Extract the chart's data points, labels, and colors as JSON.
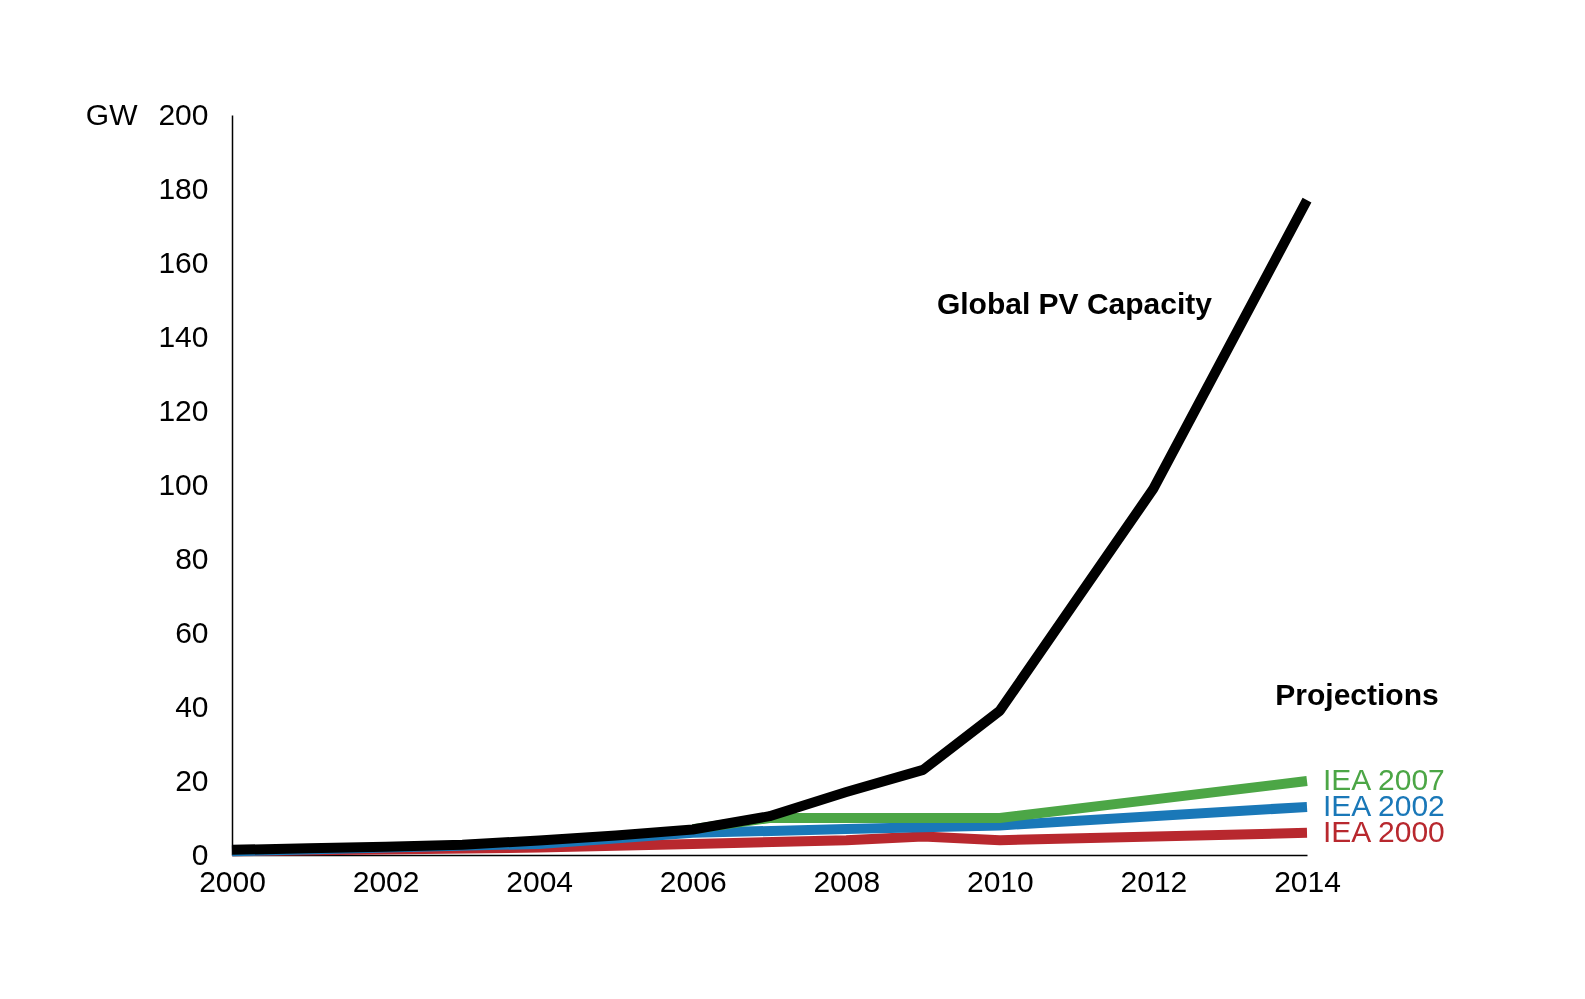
{
  "chart_data": {
    "type": "line",
    "ylabel": "GW",
    "annotations": [
      "Projections"
    ],
    "xlim": [
      2000,
      2014
    ],
    "xticks": [
      2000,
      2002,
      2004,
      2006,
      2008,
      2010,
      2012,
      2014
    ],
    "ylim": [
      0,
      200
    ],
    "yticks": [
      0,
      20,
      40,
      60,
      80,
      100,
      120,
      140,
      160,
      180,
      200
    ],
    "grid": false,
    "line_style": "solid",
    "series": [
      {
        "name": "IEA 2000",
        "color": "#b8282e",
        "x": [
          2000,
          2004,
          2006,
          2008,
          2009,
          2010,
          2014
        ],
        "values": [
          1,
          2,
          3,
          4,
          5,
          4,
          6
        ]
      },
      {
        "name": "IEA 2002",
        "color": "#1a78b8",
        "x": [
          2000,
          2004,
          2006,
          2008,
          2010,
          2014
        ],
        "values": [
          1,
          3,
          6,
          7,
          8,
          13
        ]
      },
      {
        "name": "IEA 2007",
        "color": "#4ca646",
        "x": [
          2006,
          2007,
          2010,
          2014
        ],
        "values": [
          7,
          10,
          10,
          20
        ]
      },
      {
        "name": "Global PV Capacity",
        "color": "#000000",
        "x": [
          2000,
          2001,
          2002,
          2003,
          2004,
          2005,
          2006,
          2007,
          2008,
          2009,
          2010,
          2011,
          2012,
          2013,
          2014
        ],
        "values": [
          1.4,
          1.8,
          2.2,
          2.8,
          3.9,
          5.3,
          6.9,
          10.5,
          17,
          23,
          39,
          69,
          99,
          138,
          177
        ]
      }
    ]
  }
}
